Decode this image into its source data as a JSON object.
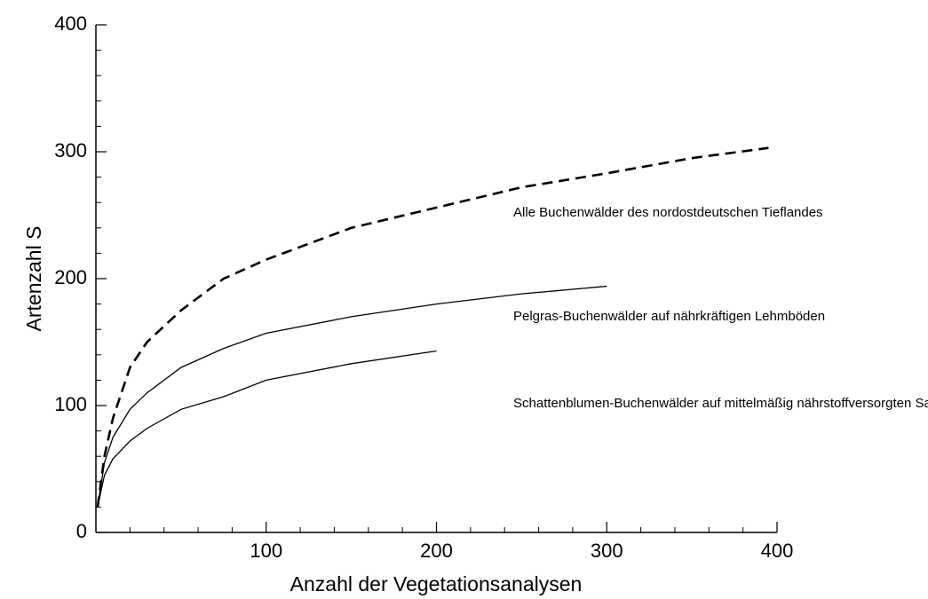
{
  "chart_data": {
    "type": "line",
    "xlabel": "Anzahl der Vegetationsanalysen",
    "ylabel": "Artenzahl S",
    "xlim": [
      0,
      400
    ],
    "ylim": [
      0,
      400
    ],
    "xticks": [
      100,
      200,
      300,
      400
    ],
    "yticks": [
      0,
      100,
      200,
      300,
      400
    ],
    "xminorticks": [
      20,
      40,
      60,
      80,
      120,
      140,
      160,
      180,
      220,
      240,
      260,
      280,
      320,
      340,
      360,
      380
    ],
    "yminorticks": [
      20,
      40,
      60,
      80,
      120,
      140,
      160,
      180,
      220,
      240,
      260,
      280,
      320,
      340,
      360,
      380
    ],
    "grid": false,
    "series": [
      {
        "name": "Alle Buchenwälder des nordostdeutschen Tieflandes",
        "color": "#000000",
        "style": "dashed",
        "x": [
          1,
          5,
          10,
          20,
          30,
          50,
          75,
          100,
          150,
          200,
          250,
          300,
          350,
          395
        ],
        "values": [
          20,
          60,
          90,
          130,
          150,
          175,
          200,
          215,
          240,
          256,
          272,
          283,
          295,
          303
        ]
      },
      {
        "name": "Pelgras-Buchenwälder auf nährkräftigen Lehmböden",
        "color": "#000000",
        "style": "solid",
        "x": [
          1,
          5,
          10,
          20,
          30,
          50,
          75,
          100,
          150,
          200,
          250,
          300
        ],
        "values": [
          20,
          55,
          75,
          97,
          110,
          130,
          145,
          157,
          170,
          180,
          188,
          194
        ]
      },
      {
        "name": "Schattenblumen-Buchenwälder auf mittelmäßig nährstoffversorgten Sandböden",
        "color": "#000000",
        "style": "solid",
        "x": [
          1,
          5,
          10,
          20,
          30,
          50,
          75,
          100,
          150,
          200
        ],
        "values": [
          20,
          45,
          58,
          72,
          82,
          97,
          107,
          120,
          133,
          143
        ]
      }
    ]
  }
}
